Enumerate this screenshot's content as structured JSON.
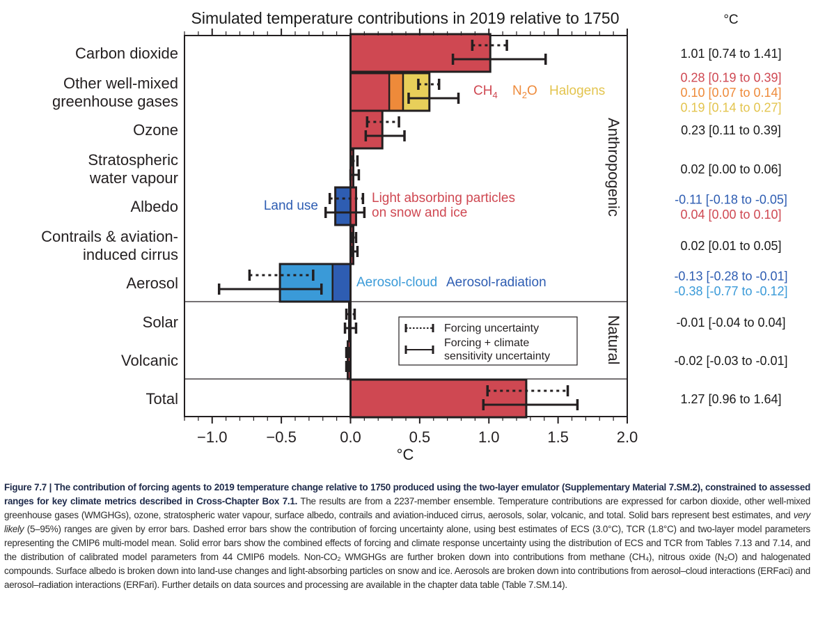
{
  "chart_data": {
    "type": "bar",
    "orientation": "horizontal",
    "title": "Simulated temperature contributions in 2019 relative to 1750",
    "xlabel": "°C",
    "values_column_header": "°C",
    "xlim": [
      -1.2,
      2.0
    ],
    "xticks": [
      -1.0,
      -0.5,
      0.0,
      0.5,
      1.0,
      1.5,
      2.0
    ],
    "xtick_labels": [
      "−1.0",
      "−0.5",
      "0.0",
      "0.5",
      "1.0",
      "1.5",
      "2.0"
    ],
    "minor_tick_step": 0.1,
    "grid": false,
    "groups": [
      {
        "label": "Anthropogenic",
        "categories": [
          "Carbon dioxide",
          "Other well-mixed greenhouse gases",
          "Ozone",
          "Stratospheric water vapour",
          "Albedo",
          "Contrails & aviation-induced cirrus",
          "Aerosol"
        ]
      },
      {
        "label": "Natural",
        "categories": [
          "Solar",
          "Volcanic"
        ]
      },
      {
        "label": "",
        "categories": [
          "Total"
        ]
      }
    ],
    "categories": [
      {
        "label_lines": [
          "Carbon dioxide"
        ],
        "segments": [
          {
            "name": "CO2",
            "value": 1.01,
            "color": "#cf4852"
          }
        ],
        "forcing_uncertainty": [
          0.88,
          1.13
        ],
        "full_uncertainty": [
          0.74,
          1.41
        ],
        "value_labels": [
          {
            "text": "1.01 [0.74 to 1.41]",
            "color": "#1a1a1a"
          }
        ]
      },
      {
        "label_lines": [
          "Other well-mixed",
          "greenhouse gases"
        ],
        "segments": [
          {
            "name": "CH4",
            "value": 0.28,
            "color": "#cf4852"
          },
          {
            "name": "N2O",
            "value": 0.1,
            "color": "#ee8a3a"
          },
          {
            "name": "Halogens",
            "value": 0.19,
            "color": "#e8cf5a"
          }
        ],
        "forcing_uncertainty": [
          0.49,
          0.64
        ],
        "full_uncertainty": [
          0.42,
          0.78
        ],
        "value_labels": [
          {
            "text": "0.28 [0.19 to 0.39]",
            "color": "#cf4852"
          },
          {
            "text": "0.10 [0.07 to 0.14]",
            "color": "#ee8a3a"
          },
          {
            "text": "0.19 [0.14 to 0.27]",
            "color": "#e3c44e"
          }
        ]
      },
      {
        "label_lines": [
          "Ozone"
        ],
        "segments": [
          {
            "name": "Ozone",
            "value": 0.23,
            "color": "#cf4852"
          }
        ],
        "forcing_uncertainty": [
          0.12,
          0.35
        ],
        "full_uncertainty": [
          0.11,
          0.39
        ],
        "value_labels": [
          {
            "text": "0.23 [0.11 to 0.39]",
            "color": "#1a1a1a"
          }
        ]
      },
      {
        "label_lines": [
          "Stratospheric",
          "water vapour"
        ],
        "segments": [
          {
            "name": "Stratospheric water vapour",
            "value": 0.02,
            "color": "#cf4852"
          }
        ],
        "forcing_uncertainty": [
          0.01,
          0.05
        ],
        "full_uncertainty": [
          0.0,
          0.06
        ],
        "value_labels": [
          {
            "text": "0.02 [0.00 to 0.06]",
            "color": "#1a1a1a"
          }
        ]
      },
      {
        "label_lines": [
          "Albedo"
        ],
        "segments": [
          {
            "name": "Land use",
            "value": -0.11,
            "color": "#2e5db2"
          },
          {
            "name": "Light absorbing particles on snow and ice",
            "value": 0.04,
            "color": "#cf4852"
          }
        ],
        "forcing_uncertainty": [
          -0.15,
          0.09
        ],
        "full_uncertainty": [
          -0.18,
          0.1
        ],
        "value_labels": [
          {
            "text": "-0.11 [-0.18 to -0.05]",
            "color": "#2e5db2"
          },
          {
            "text": "0.04 [0.00 to 0.10]",
            "color": "#cf4852"
          }
        ]
      },
      {
        "label_lines": [
          "Contrails & aviation-",
          "induced cirrus"
        ],
        "segments": [
          {
            "name": "Contrails",
            "value": 0.02,
            "color": "#cf4852"
          }
        ],
        "forcing_uncertainty": [
          0.01,
          0.04
        ],
        "full_uncertainty": [
          0.01,
          0.05
        ],
        "value_labels": [
          {
            "text": "0.02 [0.01 to 0.05]",
            "color": "#1a1a1a"
          }
        ]
      },
      {
        "label_lines": [
          "Aerosol"
        ],
        "segments": [
          {
            "name": "Aerosol-radiation",
            "value": -0.13,
            "color": "#2e5db2"
          },
          {
            "name": "Aerosol-cloud",
            "value": -0.38,
            "color": "#3a9ad8"
          }
        ],
        "forcing_uncertainty": [
          -0.73,
          -0.27
        ],
        "full_uncertainty": [
          -0.95,
          -0.21
        ],
        "value_labels": [
          {
            "text": "-0.13 [-0.28 to -0.01]",
            "color": "#2e5db2"
          },
          {
            "text": "-0.38 [-0.77 to -0.12]",
            "color": "#3a9ad8"
          }
        ]
      },
      {
        "label_lines": [
          "Solar"
        ],
        "segments": [
          {
            "name": "Solar",
            "value": -0.01,
            "color": "#cf4852"
          }
        ],
        "forcing_uncertainty": [
          -0.03,
          0.03
        ],
        "full_uncertainty": [
          -0.04,
          0.04
        ],
        "value_labels": [
          {
            "text": "-0.01 [-0.04 to 0.04]",
            "color": "#1a1a1a"
          }
        ]
      },
      {
        "label_lines": [
          "Volcanic"
        ],
        "segments": [
          {
            "name": "Volcanic",
            "value": -0.02,
            "color": "#cf4852"
          }
        ],
        "forcing_uncertainty": [
          -0.03,
          -0.01
        ],
        "full_uncertainty": [
          -0.03,
          -0.01
        ],
        "value_labels": [
          {
            "text": "-0.02 [-0.03 to -0.01]",
            "color": "#1a1a1a"
          }
        ]
      },
      {
        "label_lines": [
          "Total"
        ],
        "segments": [
          {
            "name": "Total",
            "value": 1.27,
            "color": "#cf4852"
          }
        ],
        "forcing_uncertainty": [
          0.99,
          1.57
        ],
        "full_uncertainty": [
          0.96,
          1.64
        ],
        "value_labels": [
          {
            "text": "1.27 [0.96 to 1.64]",
            "color": "#1a1a1a"
          }
        ]
      }
    ],
    "annotations": {
      "wmghg": [
        {
          "text": "CH",
          "sub": "4",
          "color": "#cf4852"
        },
        {
          "text": "N",
          "sub": "2",
          "tail": "O",
          "color": "#ee8a3a"
        },
        {
          "text": "Halogens",
          "color": "#e3c44e"
        }
      ],
      "albedo_land_use": {
        "text": "Land use",
        "color": "#2e5db2"
      },
      "albedo_lap": {
        "lines": [
          "Light absorbing particles",
          "on snow and ice"
        ],
        "color": "#cf4852"
      },
      "aerosol_cloud": {
        "text": "Aerosol-cloud",
        "color": "#3a9ad8"
      },
      "aerosol_radiation": {
        "text": "Aerosol-radiation",
        "color": "#2e5db2"
      }
    },
    "legend": {
      "placement": "lower-right",
      "entries": [
        {
          "style": "dotted",
          "lines": [
            "Forcing uncertainty"
          ]
        },
        {
          "style": "solid",
          "lines": [
            "Forcing + climate",
            "sensitivity uncertainty"
          ]
        }
      ]
    }
  },
  "caption": {
    "bold": "Figure 7.7 | The contribution of forcing agents to 2019 temperature change relative to 1750 produced using the two-layer emulator (Supplementary Material 7.SM.2), constrained to assessed ranges for key climate metrics described in Cross-Chapter Box 7.1.",
    "part1": " The results are from a 2237-member ensemble. Temperature contributions are expressed for carbon dioxide, other well-mixed greenhouse gases (WMGHGs), ozone, stratospheric water vapour, surface albedo, contrails and aviation-induced cirrus, aerosols, solar, volcanic, and total. Solid bars represent best estimates, and ",
    "italic": "very likely",
    "part2": " (5–95%) ranges are given by error bars. Dashed error bars show the contribution of forcing uncertainty alone, using best estimates of ECS (3.0°C), TCR (1.8°C) and two-layer model parameters representing the CMIP6 multi-model mean. Solid error bars show the combined effects of forcing and climate response uncertainty using the distribution of ECS and TCR from Tables 7.13 and 7.14, and the distribution of calibrated model parameters from 44 CMIP6 models. Non-CO₂ WMGHGs are further broken down into contributions from methane (CH₄), nitrous oxide (N₂O) and halogenated compounds. Surface albedo is broken down into land-use changes and light-absorbing particles on snow and ice. Aerosols are broken down into contributions from aerosol–cloud interactions (ERFaci) and aerosol–radiation interactions (ERFari). Further details on data sources and processing are available in the chapter data table (Table 7.SM.14)."
  }
}
